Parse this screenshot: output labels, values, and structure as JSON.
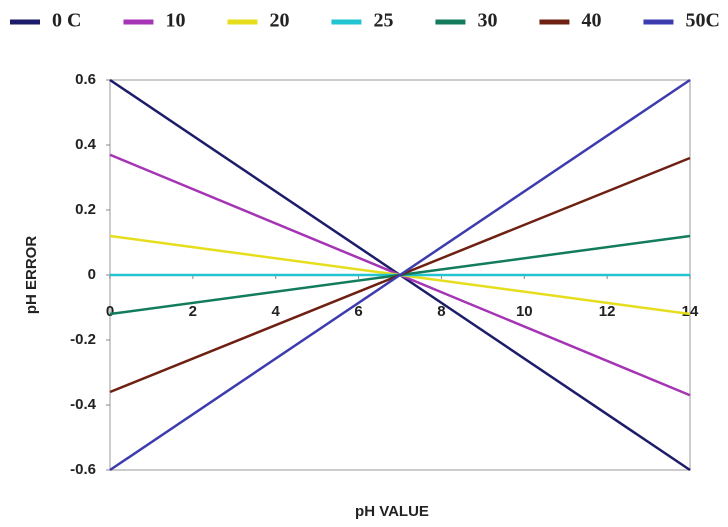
{
  "chart_data": {
    "type": "line",
    "xlabel": "pH VALUE",
    "ylabel": "pH ERROR",
    "x": [
      0,
      7,
      14
    ],
    "series": [
      {
        "name": "0 C",
        "color": "#1c1c6a",
        "values": [
          0.6,
          0,
          -0.6
        ]
      },
      {
        "name": "10",
        "color": "#a535b5",
        "values": [
          0.37,
          0,
          -0.37
        ]
      },
      {
        "name": "20",
        "color": "#e6de1c",
        "values": [
          0.12,
          0,
          -0.12
        ]
      },
      {
        "name": "25",
        "color": "#22c4d2",
        "values": [
          0,
          0,
          0
        ]
      },
      {
        "name": "30",
        "color": "#127c5c",
        "values": [
          -0.12,
          0,
          0.12
        ]
      },
      {
        "name": "40",
        "color": "#6e2012",
        "values": [
          -0.36,
          0,
          0.36
        ]
      },
      {
        "name": "50C",
        "color": "#3c3cae",
        "values": [
          -0.6,
          0,
          0.6
        ]
      }
    ],
    "xlim": [
      0,
      14
    ],
    "xticks": [
      0,
      2,
      4,
      6,
      8,
      10,
      12,
      14
    ],
    "ylim": [
      -0.6,
      0.6
    ],
    "yticks": [
      -0.6,
      -0.4,
      -0.2,
      0,
      0.2,
      0.4,
      0.6
    ],
    "legend": "top"
  }
}
